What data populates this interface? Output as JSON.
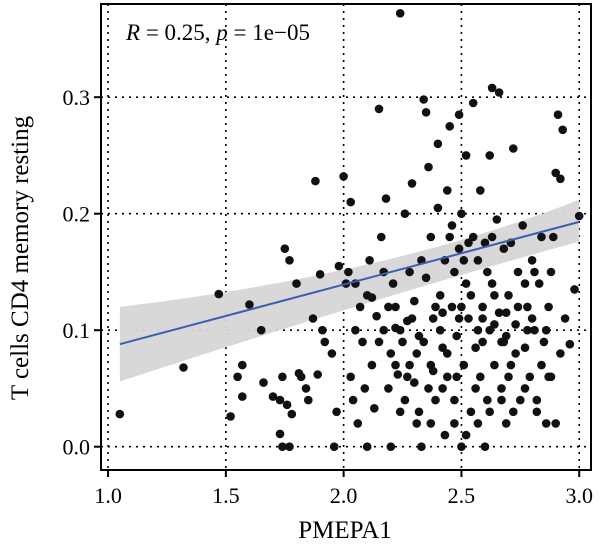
{
  "chart_data": {
    "type": "scatter",
    "xlabel": "PMEPA1",
    "ylabel": "T cells CD4 memory resting",
    "annotation": {
      "r_symbol": "R",
      "r_value": " = 0.25, ",
      "p_symbol": "p",
      "p_value": " = 1e−05"
    },
    "xlim": [
      0.97,
      3.05
    ],
    "ylim": [
      -0.02,
      0.38
    ],
    "x_ticks": [
      1.0,
      1.5,
      2.0,
      2.5,
      3.0
    ],
    "x_tick_labels": [
      "1.0",
      "1.5",
      "2.0",
      "2.5",
      "3.0"
    ],
    "y_ticks": [
      0.0,
      0.1,
      0.2,
      0.3
    ],
    "y_tick_labels": [
      "0.0",
      "0.1",
      "0.2",
      "0.3"
    ],
    "grid": true,
    "regression": {
      "x": [
        1.05,
        3.0
      ],
      "y": [
        0.088,
        0.193
      ],
      "ci_lower": [
        0.056,
        0.176
      ],
      "ci_upper": [
        0.12,
        0.212
      ],
      "color": "#3a5fb0",
      "band_color": "#d6d6d6"
    },
    "point_color": "#111111",
    "points": [
      [
        1.05,
        0.028
      ],
      [
        1.32,
        0.068
      ],
      [
        1.47,
        0.131
      ],
      [
        1.52,
        0.026
      ],
      [
        1.55,
        0.06
      ],
      [
        1.57,
        0.043
      ],
      [
        1.57,
        0.07
      ],
      [
        1.6,
        0.122
      ],
      [
        1.65,
        0.1
      ],
      [
        1.66,
        0.055
      ],
      [
        1.7,
        0.043
      ],
      [
        1.73,
        0.04
      ],
      [
        1.74,
        0.06
      ],
      [
        1.75,
        0.17
      ],
      [
        1.76,
        0.036
      ],
      [
        1.77,
        0.16
      ],
      [
        1.78,
        0.028
      ],
      [
        1.73,
        0.011
      ],
      [
        1.74,
        0.0
      ],
      [
        1.77,
        0.0
      ],
      [
        1.8,
        0.14
      ],
      [
        1.81,
        0.063
      ],
      [
        1.82,
        0.06
      ],
      [
        1.84,
        0.05
      ],
      [
        1.85,
        0.04
      ],
      [
        1.87,
        0.11
      ],
      [
        1.88,
        0.228
      ],
      [
        1.89,
        0.062
      ],
      [
        1.9,
        0.148
      ],
      [
        1.91,
        0.1
      ],
      [
        1.92,
        0.09
      ],
      [
        1.95,
        0.08
      ],
      [
        1.96,
        0.0
      ],
      [
        1.97,
        0.03
      ],
      [
        1.98,
        0.155
      ],
      [
        2.0,
        0.232
      ],
      [
        2.01,
        0.14
      ],
      [
        2.02,
        0.15
      ],
      [
        2.03,
        0.21
      ],
      [
        2.03,
        0.06
      ],
      [
        2.04,
        0.04
      ],
      [
        2.05,
        0.1
      ],
      [
        2.06,
        0.02
      ],
      [
        2.07,
        0.12
      ],
      [
        2.08,
        0.09
      ],
      [
        2.09,
        0.05
      ],
      [
        2.1,
        0.0
      ],
      [
        2.1,
        0.13
      ],
      [
        2.11,
        0.16
      ],
      [
        2.12,
        0.07
      ],
      [
        2.13,
        0.033
      ],
      [
        2.14,
        0.112
      ],
      [
        2.15,
        0.29
      ],
      [
        2.16,
        0.18
      ],
      [
        2.17,
        0.1
      ],
      [
        2.18,
        0.213
      ],
      [
        2.19,
        0.05
      ],
      [
        2.2,
        0.08
      ],
      [
        2.2,
        0.0
      ],
      [
        2.21,
        0.14
      ],
      [
        2.22,
        0.12
      ],
      [
        2.23,
        0.062
      ],
      [
        2.24,
        0.372
      ],
      [
        2.24,
        0.03
      ],
      [
        2.25,
        0.09
      ],
      [
        2.26,
        0.2
      ],
      [
        2.27,
        0.108
      ],
      [
        2.28,
        0.15
      ],
      [
        2.29,
        0.226
      ],
      [
        2.3,
        0.055
      ],
      [
        2.3,
        0.125
      ],
      [
        2.31,
        0.02
      ],
      [
        2.32,
        0.095
      ],
      [
        2.33,
        0.0
      ],
      [
        2.34,
        0.298
      ],
      [
        2.35,
        0.287
      ],
      [
        2.35,
        0.145
      ],
      [
        2.36,
        0.24
      ],
      [
        2.37,
        0.07
      ],
      [
        2.37,
        0.18
      ],
      [
        2.38,
        0.11
      ],
      [
        2.39,
        0.04
      ],
      [
        2.4,
        0.205
      ],
      [
        2.4,
        0.26
      ],
      [
        2.41,
        0.13
      ],
      [
        2.42,
        0.085
      ],
      [
        2.43,
        0.16
      ],
      [
        2.43,
        0.01
      ],
      [
        2.44,
        0.06
      ],
      [
        2.45,
        0.275
      ],
      [
        2.45,
        0.18
      ],
      [
        2.46,
        0.12
      ],
      [
        2.47,
        0.15
      ],
      [
        2.47,
        0.04
      ],
      [
        2.48,
        0.095
      ],
      [
        2.49,
        0.285
      ],
      [
        2.49,
        0.17
      ],
      [
        2.5,
        0.0
      ],
      [
        2.5,
        0.2
      ],
      [
        2.51,
        0.07
      ],
      [
        2.52,
        0.14
      ],
      [
        2.52,
        0.25
      ],
      [
        2.53,
        0.11
      ],
      [
        2.54,
        0.03
      ],
      [
        2.55,
        0.18
      ],
      [
        2.55,
        0.295
      ],
      [
        2.56,
        0.085
      ],
      [
        2.57,
        0.16
      ],
      [
        2.58,
        0.06
      ],
      [
        2.58,
        0.22
      ],
      [
        2.59,
        0.12
      ],
      [
        2.6,
        0.0
      ],
      [
        2.6,
        0.175
      ],
      [
        2.61,
        0.04
      ],
      [
        2.62,
        0.1
      ],
      [
        2.62,
        0.25
      ],
      [
        2.63,
        0.308
      ],
      [
        2.63,
        0.14
      ],
      [
        2.64,
        0.07
      ],
      [
        2.65,
        0.195
      ],
      [
        2.66,
        0.304
      ],
      [
        2.66,
        0.115
      ],
      [
        2.67,
        0.05
      ],
      [
        2.68,
        0.17
      ],
      [
        2.68,
        0.09
      ],
      [
        2.69,
        0.02
      ],
      [
        2.7,
        0.13
      ],
      [
        2.71,
        0.175
      ],
      [
        2.71,
        0.07
      ],
      [
        2.72,
        0.256
      ],
      [
        2.73,
        0.105
      ],
      [
        2.74,
        0.15
      ],
      [
        2.75,
        0.04
      ],
      [
        2.76,
        0.19
      ],
      [
        2.77,
        0.085
      ],
      [
        2.78,
        0.12
      ],
      [
        2.79,
        0.06
      ],
      [
        2.8,
        0.16
      ],
      [
        2.81,
        0.1
      ],
      [
        2.82,
        0.03
      ],
      [
        2.83,
        0.14
      ],
      [
        2.84,
        0.18
      ],
      [
        2.85,
        0.09
      ],
      [
        2.86,
        0.02
      ],
      [
        2.87,
        0.12
      ],
      [
        2.88,
        0.06
      ],
      [
        2.89,
        0.18
      ],
      [
        2.9,
        0.235
      ],
      [
        2.9,
        0.02
      ],
      [
        2.91,
        0.285
      ],
      [
        2.92,
        0.23
      ],
      [
        2.93,
        0.272
      ],
      [
        2.94,
        0.11
      ],
      [
        2.96,
        0.088
      ],
      [
        2.98,
        0.135
      ],
      [
        3.0,
        0.198
      ],
      [
        2.05,
        0.14
      ],
      [
        2.12,
        0.128
      ],
      [
        2.17,
        0.15
      ],
      [
        2.22,
        0.102
      ],
      [
        2.28,
        0.07
      ],
      [
        2.33,
        0.16
      ],
      [
        2.38,
        0.065
      ],
      [
        2.42,
        0.115
      ],
      [
        2.46,
        0.19
      ],
      [
        2.5,
        0.12
      ],
      [
        2.53,
        0.175
      ],
      [
        2.57,
        0.1
      ],
      [
        2.61,
        0.15
      ],
      [
        2.64,
        0.13
      ],
      [
        2.69,
        0.115
      ],
      [
        2.73,
        0.08
      ],
      [
        2.77,
        0.14
      ],
      [
        2.8,
        0.11
      ],
      [
        2.84,
        0.07
      ],
      [
        2.88,
        0.15
      ],
      [
        2.26,
        0.04
      ],
      [
        2.31,
        0.08
      ],
      [
        2.36,
        0.05
      ],
      [
        2.41,
        0.1
      ],
      [
        2.44,
        0.22
      ],
      [
        2.48,
        0.06
      ],
      [
        2.51,
        0.16
      ],
      [
        2.56,
        0.05
      ],
      [
        2.59,
        0.09
      ],
      [
        2.63,
        0.18
      ],
      [
        2.67,
        0.09
      ],
      [
        2.7,
        0.06
      ],
      [
        2.74,
        0.12
      ],
      [
        2.78,
        0.1
      ],
      [
        2.81,
        0.15
      ],
      [
        2.86,
        0.1
      ],
      [
        2.15,
        0.09
      ],
      [
        2.19,
        0.12
      ],
      [
        2.24,
        0.1
      ],
      [
        2.29,
        0.11
      ],
      [
        2.34,
        0.09
      ],
      [
        2.39,
        0.12
      ],
      [
        2.44,
        0.08
      ],
      [
        2.49,
        0.11
      ],
      [
        2.54,
        0.13
      ],
      [
        2.59,
        0.11
      ],
      [
        2.64,
        0.105
      ],
      [
        2.69,
        0.095
      ],
      [
        2.22,
        0.07
      ],
      [
        2.27,
        0.06
      ],
      [
        2.32,
        0.03
      ],
      [
        2.37,
        0.02
      ],
      [
        2.42,
        0.05
      ],
      [
        2.47,
        0.02
      ],
      [
        2.52,
        0.01
      ],
      [
        2.57,
        0.02
      ],
      [
        2.62,
        0.03
      ],
      [
        2.67,
        0.04
      ],
      [
        2.72,
        0.03
      ],
      [
        2.77,
        0.05
      ],
      [
        2.82,
        0.04
      ],
      [
        2.87,
        0.06
      ],
      [
        2.92,
        0.08
      ]
    ]
  }
}
